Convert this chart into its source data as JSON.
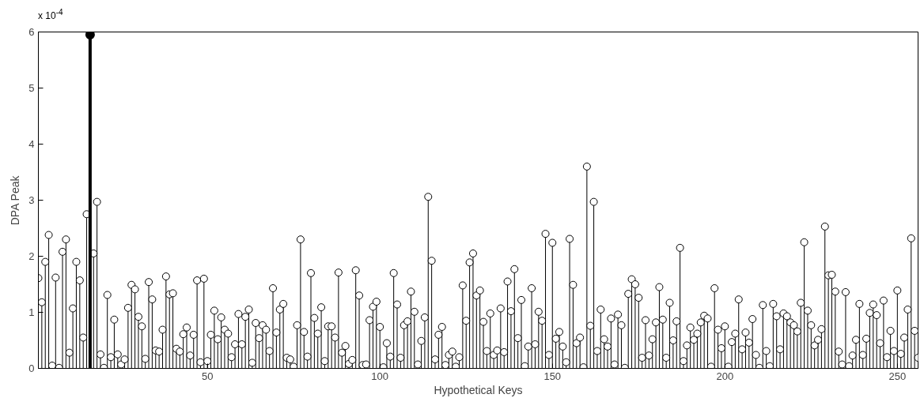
{
  "chart_data": {
    "type": "lollipop",
    "xlabel": "Hypothetical Keys",
    "ylabel": "DPA Peak",
    "annotations": [
      "x 10$^{-4}$"
    ],
    "x": [
      1,
      2,
      3,
      4,
      5,
      6,
      7,
      8,
      9,
      10,
      11,
      12,
      13,
      14,
      15,
      16,
      17,
      18,
      19,
      20,
      21,
      22,
      23,
      24,
      25,
      26,
      27,
      28,
      29,
      30,
      31,
      32,
      33,
      34,
      35,
      36,
      37,
      38,
      39,
      40,
      41,
      42,
      43,
      44,
      45,
      46,
      47,
      48,
      49,
      50,
      51,
      52,
      53,
      54,
      55,
      56,
      57,
      58,
      59,
      60,
      61,
      62,
      63,
      64,
      65,
      66,
      67,
      68,
      69,
      70,
      71,
      72,
      73,
      74,
      75,
      76,
      77,
      78,
      79,
      80,
      81,
      82,
      83,
      84,
      85,
      86,
      87,
      88,
      89,
      90,
      91,
      92,
      93,
      94,
      95,
      96,
      97,
      98,
      99,
      100,
      101,
      102,
      103,
      104,
      105,
      106,
      107,
      108,
      109,
      110,
      111,
      112,
      113,
      114,
      115,
      116,
      117,
      118,
      119,
      120,
      121,
      122,
      123,
      124,
      125,
      126,
      127,
      128,
      129,
      130,
      131,
      132,
      133,
      134,
      135,
      136,
      137,
      138,
      139,
      140,
      141,
      142,
      143,
      144,
      145,
      146,
      147,
      148,
      149,
      150,
      151,
      152,
      153,
      154,
      155,
      156,
      157,
      158,
      159,
      160,
      161,
      162,
      163,
      164,
      165,
      166,
      167,
      168,
      169,
      170,
      171,
      172,
      173,
      174,
      175,
      176,
      177,
      178,
      179,
      180,
      181,
      182,
      183,
      184,
      185,
      186,
      187,
      188,
      189,
      190,
      191,
      192,
      193,
      194,
      195,
      196,
      197,
      198,
      199,
      200,
      201,
      202,
      203,
      204,
      205,
      206,
      207,
      208,
      209,
      210,
      211,
      212,
      213,
      214,
      215,
      216,
      217,
      218,
      219,
      220,
      221,
      222,
      223,
      224,
      225,
      226,
      227,
      228,
      229,
      230,
      231,
      232,
      233,
      234,
      235,
      236,
      237,
      238,
      239,
      240,
      241,
      242,
      243,
      244,
      245,
      246,
      247,
      248,
      249,
      250,
      251,
      252,
      253,
      254,
      255,
      256
    ],
    "series": [
      {
        "color": "#000000",
        "values": [
          1.61,
          1.18,
          1.9,
          2.38,
          0.05,
          1.62,
          0.01,
          2.08,
          2.3,
          0.28,
          1.07,
          1.9,
          1.57,
          0.55,
          2.75,
          null,
          2.05,
          2.97,
          0.25,
          0.01,
          1.31,
          0.2,
          0.87,
          0.25,
          0.07,
          0.16,
          1.08,
          1.49,
          1.41,
          0.92,
          0.75,
          0.17,
          1.54,
          1.23,
          0.32,
          0.3,
          0.69,
          1.64,
          1.32,
          1.34,
          0.35,
          0.3,
          0.61,
          0.73,
          0.23,
          0.6,
          1.57,
          0.11,
          1.6,
          0.13,
          0.6,
          1.03,
          0.52,
          0.91,
          0.69,
          0.62,
          0.2,
          0.43,
          0.97,
          0.43,
          0.92,
          1.05,
          0.1,
          0.81,
          0.54,
          0.77,
          0.69,
          0.31,
          1.43,
          0.64,
          1.05,
          1.15,
          0.19,
          0.16,
          0.03,
          0.77,
          2.3,
          0.65,
          0.21,
          1.7,
          0.9,
          0.62,
          1.09,
          0.13,
          0.75,
          0.75,
          0.55,
          1.71,
          0.28,
          0.4,
          0.08,
          0.15,
          1.75,
          1.3,
          0.06,
          0.07,
          0.86,
          1.1,
          1.19,
          0.74,
          0.02,
          0.45,
          0.21,
          1.7,
          1.14,
          0.19,
          0.77,
          0.84,
          1.37,
          1.01,
          0.07,
          0.49,
          0.91,
          3.06,
          1.92,
          0.16,
          0.6,
          0.74,
          0.06,
          0.24,
          0.3,
          0.03,
          0.2,
          1.48,
          0.85,
          1.89,
          2.05,
          1.3,
          1.39,
          0.83,
          0.31,
          0.98,
          0.24,
          0.32,
          1.07,
          0.29,
          1.55,
          1.02,
          1.77,
          0.54,
          1.22,
          0.04,
          0.39,
          1.43,
          0.43,
          1.01,
          0.85,
          2.4,
          0.24,
          2.24,
          0.53,
          0.65,
          0.39,
          0.11,
          2.31,
          1.49,
          0.45,
          0.55,
          0.02,
          3.6,
          0.76,
          2.97,
          0.31,
          1.05,
          0.52,
          0.39,
          0.89,
          0.07,
          0.96,
          0.77,
          0.01,
          1.33,
          1.59,
          1.5,
          1.26,
          0.19,
          0.86,
          0.23,
          0.52,
          0.82,
          1.45,
          0.87,
          0.19,
          1.17,
          0.5,
          0.84,
          2.15,
          0.13,
          0.41,
          0.73,
          0.51,
          0.62,
          0.82,
          0.94,
          0.89,
          0.03,
          1.43,
          0.69,
          0.36,
          0.75,
          0.03,
          0.47,
          0.62,
          1.23,
          0.34,
          0.64,
          0.46,
          0.88,
          0.24,
          0.01,
          1.13,
          0.31,
          0.04,
          1.15,
          0.93,
          0.34,
          0.98,
          0.93,
          0.82,
          0.77,
          0.66,
          1.17,
          2.25,
          1.03,
          0.77,
          0.41,
          0.51,
          0.7,
          2.53,
          1.66,
          1.67,
          1.37,
          0.3,
          0.07,
          1.36,
          0.04,
          0.23,
          0.51,
          1.15,
          0.24,
          0.53,
          0.99,
          1.14,
          0.95,
          0.45,
          1.21,
          0.2,
          0.67,
          0.31,
          1.39,
          0.26,
          0.55,
          1.05,
          2.32,
          0.67,
          0.19
        ]
      },
      {
        "color": "#000000",
        "values": [
          null,
          null,
          null,
          null,
          null,
          null,
          null,
          null,
          null,
          null,
          null,
          null,
          null,
          null,
          null,
          5.95,
          null,
          null,
          null,
          null,
          null,
          null,
          null,
          null,
          null,
          null,
          null,
          null,
          null,
          null,
          null,
          null,
          null,
          null,
          null,
          null,
          null,
          null,
          null,
          null,
          null,
          null,
          null,
          null,
          null,
          null,
          null,
          null,
          null,
          null,
          null,
          null,
          null,
          null,
          null,
          null,
          null,
          null,
          null,
          null,
          null,
          null,
          null,
          null,
          null,
          null,
          null,
          null,
          null,
          null,
          null,
          null,
          null,
          null,
          null,
          null,
          null,
          null,
          null,
          null,
          null,
          null,
          null,
          null,
          null,
          null,
          null,
          null,
          null,
          null,
          null,
          null,
          null,
          null,
          null,
          null,
          null,
          null,
          null,
          null,
          null,
          null,
          null,
          null,
          null,
          null,
          null,
          null,
          null,
          null,
          null,
          null,
          null,
          null,
          null,
          null,
          null,
          null,
          null,
          null,
          null,
          null,
          null,
          null,
          null,
          null,
          null,
          null,
          null,
          null,
          null,
          null,
          null,
          null,
          null,
          null,
          null,
          null,
          null,
          null,
          null,
          null,
          null,
          null,
          null,
          null,
          null,
          null,
          null,
          null,
          null,
          null,
          null,
          null,
          null,
          null,
          null,
          null,
          null,
          null,
          null,
          null,
          null,
          null,
          null,
          null,
          null,
          null,
          null,
          null,
          null,
          null,
          null,
          null,
          null,
          null,
          null,
          null,
          null,
          null,
          null,
          null,
          null,
          null,
          null,
          null,
          null,
          null,
          null,
          null,
          null,
          null,
          null,
          null,
          null,
          null,
          null,
          null,
          null,
          null,
          null,
          null,
          null,
          null,
          null,
          null,
          null,
          null,
          null,
          null,
          null,
          null,
          null,
          null,
          null,
          null,
          null,
          null,
          null,
          null,
          null,
          null,
          null,
          null,
          null,
          null,
          null,
          null,
          null,
          null,
          null,
          null,
          null,
          null,
          null,
          null,
          null,
          null,
          null,
          null,
          null,
          null,
          null,
          null,
          null,
          null,
          null,
          null,
          null,
          null,
          null,
          null,
          null,
          null,
          null,
          null
        ]
      }
    ],
    "xlim": [
      1,
      256
    ],
    "xticks": [
      50,
      100,
      150,
      200,
      250
    ],
    "ylim": [
      0,
      6
    ],
    "yticks": [
      0,
      1,
      2,
      3,
      4,
      5,
      6
    ],
    "grid": false,
    "marker": "circle"
  }
}
